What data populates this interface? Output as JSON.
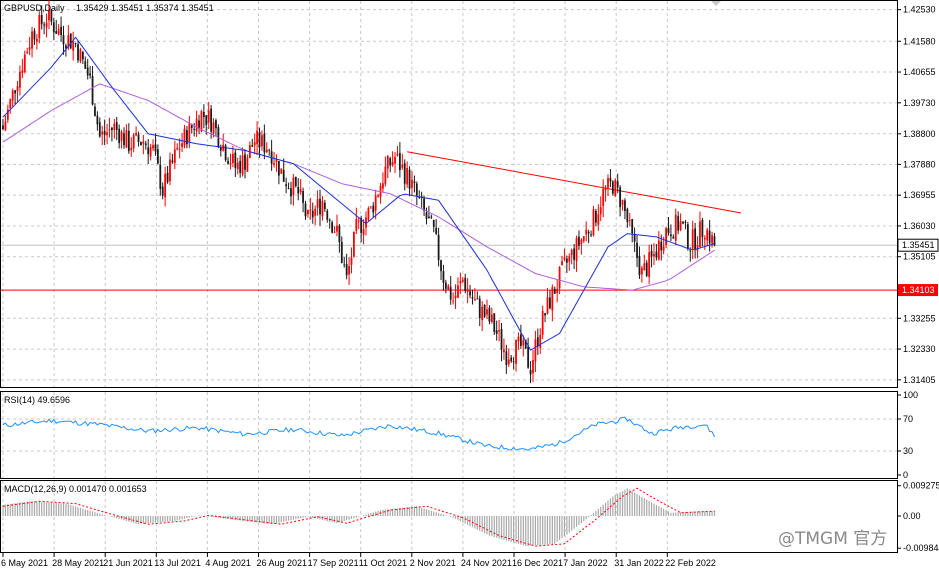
{
  "chart_data": [
    {
      "type": "candlestick",
      "symbol_label": "GBPUSD,Daily",
      "ohlc_label": "1.35429 1.35451 1.35374 1.35451",
      "y_ticks": [
        "1.42530",
        "1.41580",
        "1.40655",
        "1.39730",
        "1.38800",
        "1.37880",
        "1.36955",
        "1.36030",
        "1.35105",
        "1.33255",
        "1.32330",
        "1.31405"
      ],
      "x_ticks": [
        "6 May 2021",
        "28 May 2021",
        "21 Jun 2021",
        "13 Jul 2021",
        "4 Aug 2021",
        "26 Aug 2021",
        "17 Sep 2021",
        "11 Oct 2021",
        "2 Nov 2021",
        "24 Nov 2021",
        "16 Dec 2021",
        "7 Jan 2022",
        "31 Jan 2022",
        "22 Feb 2022"
      ],
      "ylim": [
        1.3122,
        1.4276
      ],
      "current_price_label": "1.35451",
      "horizontal_line_label": "1.34103",
      "anchors": [
        [
          0,
          1.3895
        ],
        [
          6,
          1.405
        ],
        [
          12,
          1.418
        ],
        [
          18,
          1.423
        ],
        [
          24,
          1.418
        ],
        [
          30,
          1.415
        ],
        [
          36,
          1.404
        ],
        [
          40,
          1.387
        ],
        [
          46,
          1.39
        ],
        [
          52,
          1.385
        ],
        [
          58,
          1.386
        ],
        [
          62,
          1.383
        ],
        [
          66,
          1.371
        ],
        [
          72,
          1.383
        ],
        [
          76,
          1.388
        ],
        [
          82,
          1.394
        ],
        [
          86,
          1.392
        ],
        [
          92,
          1.383
        ],
        [
          96,
          1.378
        ],
        [
          100,
          1.38
        ],
        [
          104,
          1.386
        ],
        [
          110,
          1.384
        ],
        [
          116,
          1.375
        ],
        [
          122,
          1.37
        ],
        [
          126,
          1.362
        ],
        [
          132,
          1.368
        ],
        [
          138,
          1.358
        ],
        [
          142,
          1.344
        ],
        [
          146,
          1.359
        ],
        [
          152,
          1.365
        ],
        [
          158,
          1.377
        ],
        [
          162,
          1.381
        ],
        [
          168,
          1.374
        ],
        [
          174,
          1.364
        ],
        [
          178,
          1.358
        ],
        [
          182,
          1.345
        ],
        [
          186,
          1.338
        ],
        [
          190,
          1.344
        ],
        [
          196,
          1.336
        ],
        [
          202,
          1.331
        ],
        [
          208,
          1.322
        ],
        [
          214,
          1.324
        ],
        [
          218,
          1.318
        ],
        [
          222,
          1.33
        ],
        [
          226,
          1.338
        ],
        [
          232,
          1.348
        ],
        [
          238,
          1.355
        ],
        [
          244,
          1.362
        ],
        [
          248,
          1.37
        ],
        [
          252,
          1.373
        ],
        [
          256,
          1.367
        ],
        [
          260,
          1.356
        ],
        [
          264,
          1.346
        ],
        [
          268,
          1.35
        ],
        [
          274,
          1.359
        ],
        [
          280,
          1.361
        ],
        [
          284,
          1.355
        ],
        [
          290,
          1.36
        ],
        [
          294,
          1.3545
        ]
      ],
      "sma_anchors": [
        [
          0,
          1.393
        ],
        [
          20,
          1.408
        ],
        [
          30,
          1.417
        ],
        [
          45,
          1.402
        ],
        [
          60,
          1.388
        ],
        [
          80,
          1.385
        ],
        [
          100,
          1.383
        ],
        [
          120,
          1.379
        ],
        [
          135,
          1.37
        ],
        [
          150,
          1.361
        ],
        [
          165,
          1.37
        ],
        [
          180,
          1.368
        ],
        [
          200,
          1.347
        ],
        [
          218,
          1.323
        ],
        [
          230,
          1.328
        ],
        [
          240,
          1.341
        ],
        [
          250,
          1.354
        ],
        [
          258,
          1.358
        ],
        [
          270,
          1.357
        ],
        [
          285,
          1.353
        ],
        [
          294,
          1.355
        ]
      ],
      "ma_anchors": [
        [
          0,
          1.3855
        ],
        [
          20,
          1.395
        ],
        [
          40,
          1.403
        ],
        [
          60,
          1.398
        ],
        [
          80,
          1.39
        ],
        [
          100,
          1.383
        ],
        [
          120,
          1.379
        ],
        [
          140,
          1.373
        ],
        [
          160,
          1.37
        ],
        [
          180,
          1.363
        ],
        [
          200,
          1.354
        ],
        [
          220,
          1.346
        ],
        [
          240,
          1.342
        ],
        [
          260,
          1.341
        ],
        [
          275,
          1.344
        ],
        [
          294,
          1.353
        ]
      ],
      "trendline": [
        [
          167,
          1.3826
        ],
        [
          305,
          1.3642
        ]
      ],
      "horizontal_line": 1.34103,
      "current_price": 1.35451,
      "num_bars": 295
    },
    {
      "type": "line",
      "label": "RSI(14) 49.6596",
      "y_ticks": [
        "100",
        "70",
        "30",
        "0"
      ],
      "ylim": [
        0,
        100
      ],
      "levels": [
        70,
        30
      ],
      "anchors": [
        [
          0,
          62
        ],
        [
          20,
          68
        ],
        [
          40,
          63
        ],
        [
          60,
          55
        ],
        [
          80,
          59
        ],
        [
          100,
          51
        ],
        [
          120,
          57
        ],
        [
          140,
          49
        ],
        [
          160,
          62
        ],
        [
          180,
          52
        ],
        [
          200,
          36
        ],
        [
          218,
          32
        ],
        [
          230,
          40
        ],
        [
          245,
          63
        ],
        [
          258,
          70
        ],
        [
          268,
          52
        ],
        [
          280,
          60
        ],
        [
          290,
          63
        ],
        [
          294,
          49.7
        ]
      ]
    },
    {
      "type": "bar+line",
      "label": "MACD(12,26,9) 0.001470 0.001653",
      "y_ticks": [
        "0.009275",
        "0.00",
        "-0.009844"
      ],
      "ylim": [
        -0.0104,
        0.0098
      ],
      "anchors": [
        [
          0,
          0.003
        ],
        [
          15,
          0.0045
        ],
        [
          30,
          0.0038
        ],
        [
          45,
          0.0005
        ],
        [
          60,
          -0.0025
        ],
        [
          75,
          -0.0015
        ],
        [
          85,
          0.0002
        ],
        [
          100,
          -0.0012
        ],
        [
          115,
          -0.0025
        ],
        [
          130,
          -0.0002
        ],
        [
          142,
          -0.0022
        ],
        [
          160,
          0.0018
        ],
        [
          175,
          0.003
        ],
        [
          190,
          -0.0005
        ],
        [
          205,
          -0.006
        ],
        [
          220,
          -0.0092
        ],
        [
          232,
          -0.0085
        ],
        [
          245,
          -0.001
        ],
        [
          256,
          0.006
        ],
        [
          262,
          0.0085
        ],
        [
          270,
          0.005
        ],
        [
          280,
          0.001
        ],
        [
          294,
          0.0015
        ]
      ]
    }
  ],
  "watermark": "@TMGM 官方"
}
